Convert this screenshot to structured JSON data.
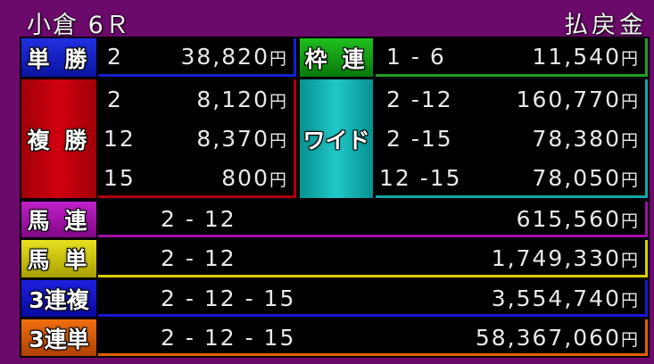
{
  "header": {
    "race": "小倉 6Ｒ",
    "payout_label": "払戻金"
  },
  "colors": {
    "background": "#6b0a6b",
    "tansho": "#0a14b4",
    "fukusho": "#b40008",
    "wakuren": "#0a9a10",
    "wide": "#10b0b0",
    "umaren": "#a010a8",
    "umatan": "#c8c000",
    "sanrenpuku": "#1010c0",
    "sanrentan": "#e06000"
  },
  "currency": "円",
  "tansho": {
    "label": "単 勝",
    "combo": "2",
    "amount": "38,820"
  },
  "wakuren": {
    "label": "枠 連",
    "combo": "1 - 6",
    "amount": "11,540"
  },
  "fukusho": {
    "label": "複 勝",
    "rows": [
      {
        "combo": "2",
        "amount": "8,120"
      },
      {
        "combo": "12",
        "amount": "8,370"
      },
      {
        "combo": "15",
        "amount": "800"
      }
    ]
  },
  "wide": {
    "label": "ワイド",
    "rows": [
      {
        "combo": "2 -12",
        "amount": "160,770"
      },
      {
        "combo": "2 -15",
        "amount": "78,380"
      },
      {
        "combo": "12 -15",
        "amount": "78,050"
      }
    ]
  },
  "umaren": {
    "label": "馬 連",
    "combo": "2 - 12",
    "amount": "615,560"
  },
  "umatan": {
    "label": "馬 単",
    "combo": "2 - 12",
    "amount": "1,749,330"
  },
  "sanrenpuku": {
    "label": "3連複",
    "combo": "2 - 12 - 15",
    "amount": "3,554,740"
  },
  "sanrentan": {
    "label": "3連単",
    "combo": "2 - 12 - 15",
    "amount": "58,367,060"
  }
}
